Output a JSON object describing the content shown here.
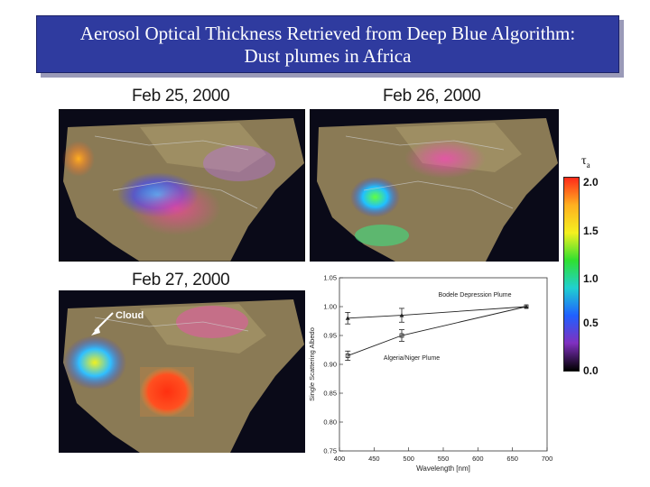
{
  "title": "Aerosol Optical Thickness Retrieved from Deep Blue Algorithm: Dust plumes in Africa",
  "title_line1": "Aerosol Optical Thickness Retrieved from Deep Blue Algorithm:",
  "title_line2": "Dust plumes in Africa",
  "panels": [
    {
      "date": "Feb 25, 2000"
    },
    {
      "date": "Feb 26, 2000"
    },
    {
      "date": "Feb 27, 2000"
    }
  ],
  "cloud_label": "Cloud",
  "colorbar": {
    "symbol": "τ",
    "subscript": "a",
    "ticks": [
      "2.0",
      "1.5",
      "1.0",
      "0.5",
      "0.0"
    ],
    "colors": [
      "#ff2a1a",
      "#ffb020",
      "#f4f020",
      "#30e030",
      "#20d0d0",
      "#2060ff",
      "#8030c0",
      "#000000"
    ]
  },
  "chart_data": {
    "type": "line",
    "title": "",
    "xlabel": "Wavelength [nm]",
    "ylabel": "Single Scattering Albedo",
    "xlim": [
      400,
      700
    ],
    "ylim": [
      0.75,
      1.05
    ],
    "xticks": [
      400,
      450,
      500,
      550,
      600,
      650,
      700
    ],
    "yticks": [
      0.75,
      0.8,
      0.85,
      0.9,
      0.95,
      1.0,
      1.05
    ],
    "xtick_labels": [
      "400",
      "450",
      "500",
      "550",
      "600",
      "650",
      "700"
    ],
    "ytick_labels": [
      "0.75",
      "0.80",
      "0.85",
      "0.90",
      "0.95",
      "1.00",
      "1.05"
    ],
    "series": [
      {
        "name": "Bodele Depression Plume",
        "x": [
          412,
          490,
          670
        ],
        "y": [
          0.98,
          0.985,
          1.0
        ],
        "err": [
          0.01,
          0.012,
          0.0
        ]
      },
      {
        "name": "Algeria/Niger Plume",
        "x": [
          412,
          490,
          670
        ],
        "y": [
          0.915,
          0.95,
          1.0
        ],
        "err": [
          0.008,
          0.01,
          0.0
        ]
      }
    ]
  }
}
